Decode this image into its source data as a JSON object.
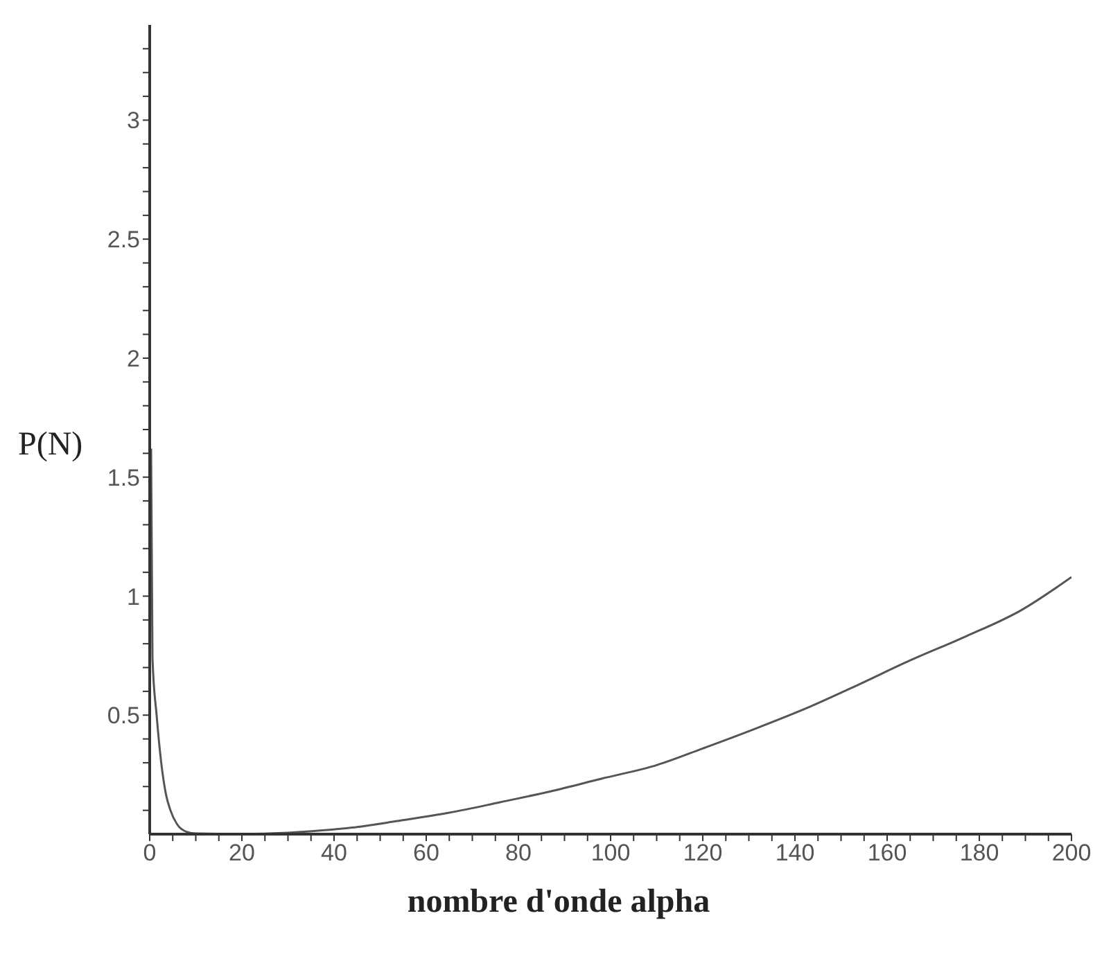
{
  "chart_data": {
    "type": "line",
    "xlabel": "nombre d'onde alpha",
    "ylabel": "P(N)",
    "xlim": [
      0,
      200
    ],
    "ylim": [
      0,
      3.4
    ],
    "xticks": [
      0,
      {
        "value": 5,
        "label": null
      },
      {
        "value": 10,
        "label": null
      },
      {
        "value": 15,
        "label": null
      },
      20,
      {
        "value": 25,
        "label": null
      },
      {
        "value": 30,
        "label": null
      },
      {
        "value": 35,
        "label": null
      },
      40,
      {
        "value": 45,
        "label": null
      },
      {
        "value": 50,
        "label": null
      },
      {
        "value": 55,
        "label": null
      },
      60,
      {
        "value": 65,
        "label": null
      },
      {
        "value": 70,
        "label": null
      },
      {
        "value": 75,
        "label": null
      },
      80,
      {
        "value": 85,
        "label": null
      },
      {
        "value": 90,
        "label": null
      },
      {
        "value": 95,
        "label": null
      },
      100,
      {
        "value": 105,
        "label": null
      },
      {
        "value": 110,
        "label": null
      },
      {
        "value": 115,
        "label": null
      },
      120,
      {
        "value": 125,
        "label": null
      },
      {
        "value": 130,
        "label": null
      },
      {
        "value": 135,
        "label": null
      },
      140,
      {
        "value": 145,
        "label": null
      },
      {
        "value": 150,
        "label": null
      },
      {
        "value": 155,
        "label": null
      },
      160,
      {
        "value": 165,
        "label": null
      },
      {
        "value": 170,
        "label": null
      },
      {
        "value": 175,
        "label": null
      },
      180,
      {
        "value": 185,
        "label": null
      },
      {
        "value": 190,
        "label": null
      },
      {
        "value": 195,
        "label": null
      },
      200
    ],
    "yticks": [
      {
        "value": 0.1,
        "label": null
      },
      {
        "value": 0.2,
        "label": null
      },
      {
        "value": 0.3,
        "label": null
      },
      {
        "value": 0.4,
        "label": null
      },
      0.5,
      {
        "value": 0.6,
        "label": null
      },
      {
        "value": 0.7,
        "label": null
      },
      {
        "value": 0.8,
        "label": null
      },
      {
        "value": 0.9,
        "label": null
      },
      1,
      {
        "value": 1.1,
        "label": null
      },
      {
        "value": 1.2,
        "label": null
      },
      {
        "value": 1.3,
        "label": null
      },
      {
        "value": 1.4,
        "label": null
      },
      1.5,
      {
        "value": 1.6,
        "label": null
      },
      {
        "value": 1.7,
        "label": null
      },
      {
        "value": 1.8,
        "label": null
      },
      {
        "value": 1.9,
        "label": null
      },
      2,
      {
        "value": 2.1,
        "label": null
      },
      {
        "value": 2.2,
        "label": null
      },
      {
        "value": 2.3,
        "label": null
      },
      {
        "value": 2.4,
        "label": null
      },
      2.5,
      {
        "value": 2.6,
        "label": null
      },
      {
        "value": 2.7,
        "label": null
      },
      {
        "value": 2.8,
        "label": null
      },
      {
        "value": 2.9,
        "label": null
      },
      3,
      {
        "value": 3.1,
        "label": null
      },
      {
        "value": 3.2,
        "label": null
      },
      {
        "value": 3.3,
        "label": null
      }
    ],
    "grid": false,
    "legend": false,
    "marker": "none",
    "line_style": "solid",
    "series": [
      {
        "color": "#555555",
        "x": [
          0.3,
          0.6,
          1.5,
          2.5,
          3.5,
          4.5,
          6,
          8,
          10,
          20,
          30,
          37,
          45,
          53.7,
          65,
          76,
          87,
          98,
          110,
          120,
          131,
          142.6,
          154,
          165,
          177,
          189,
          200
        ],
        "values": [
          1.62,
          0.74,
          0.5,
          0.3,
          0.17,
          0.1,
          0.04,
          0.01,
          0.003,
          0.001,
          0.006,
          0.015,
          0.03,
          0.055,
          0.09,
          0.134,
          0.18,
          0.233,
          0.29,
          0.36,
          0.44,
          0.53,
          0.63,
          0.73,
          0.83,
          0.94,
          1.08
        ]
      }
    ]
  }
}
